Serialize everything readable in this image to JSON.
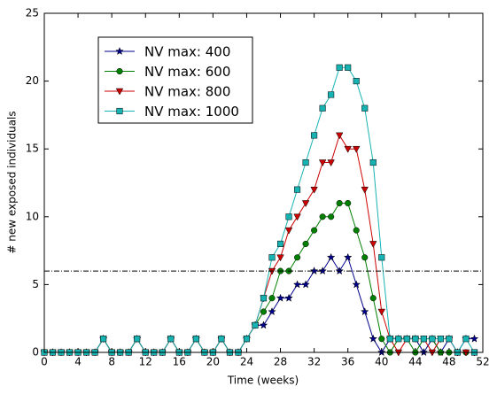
{
  "chart_data": {
    "type": "line",
    "xlabel": "Time (weeks)",
    "ylabel": "# new exposed individuals",
    "x": [
      0,
      1,
      2,
      3,
      4,
      5,
      6,
      7,
      8,
      9,
      10,
      11,
      12,
      13,
      14,
      15,
      16,
      17,
      18,
      19,
      20,
      21,
      22,
      23,
      24,
      25,
      26,
      27,
      28,
      29,
      30,
      31,
      32,
      33,
      34,
      35,
      36,
      37,
      38,
      39,
      40,
      41,
      42,
      43,
      44,
      45,
      46,
      47,
      48,
      49,
      50,
      51
    ],
    "series": [
      {
        "name": "NV max: 400",
        "color": "#00008b",
        "marker": "star",
        "values": [
          0,
          0,
          0,
          0,
          0,
          0,
          0,
          1,
          0,
          0,
          0,
          1,
          0,
          0,
          0,
          1,
          0,
          0,
          1,
          0,
          0,
          1,
          0,
          0,
          1,
          2,
          2,
          3,
          4,
          4,
          5,
          5,
          6,
          6,
          7,
          6,
          7,
          5,
          3,
          1,
          0,
          1,
          1,
          1,
          1,
          0,
          1,
          0,
          1,
          0,
          1,
          1
        ]
      },
      {
        "name": "NV max: 600",
        "color": "#007f00",
        "marker": "circle",
        "values": [
          0,
          0,
          0,
          0,
          0,
          0,
          0,
          1,
          0,
          0,
          0,
          1,
          0,
          0,
          0,
          1,
          0,
          0,
          1,
          0,
          0,
          1,
          0,
          0,
          1,
          2,
          3,
          4,
          6,
          6,
          7,
          8,
          9,
          10,
          10,
          11,
          11,
          9,
          7,
          4,
          1,
          0,
          1,
          1,
          0,
          1,
          1,
          0,
          0,
          0,
          0,
          0
        ]
      },
      {
        "name": "NV max: 800",
        "color": "#cc0000",
        "marker": "triangle-down",
        "values": [
          0,
          0,
          0,
          0,
          0,
          0,
          0,
          1,
          0,
          0,
          0,
          1,
          0,
          0,
          0,
          1,
          0,
          0,
          1,
          0,
          0,
          1,
          0,
          0,
          1,
          2,
          4,
          6,
          7,
          9,
          10,
          11,
          12,
          14,
          14,
          16,
          15,
          15,
          12,
          8,
          3,
          1,
          0,
          1,
          1,
          1,
          0,
          1,
          1,
          0,
          0,
          0
        ]
      },
      {
        "name": "NV max: 1000",
        "color": "#17b2b2",
        "marker": "square",
        "values": [
          0,
          0,
          0,
          0,
          0,
          0,
          0,
          1,
          0,
          0,
          0,
          1,
          0,
          0,
          0,
          1,
          0,
          0,
          1,
          0,
          0,
          1,
          0,
          0,
          1,
          2,
          4,
          7,
          8,
          10,
          12,
          14,
          16,
          18,
          19,
          21,
          21,
          20,
          18,
          14,
          7,
          1,
          1,
          1,
          1,
          1,
          1,
          1,
          1,
          0,
          1,
          0
        ]
      }
    ],
    "hline": 6,
    "xlim": [
      0,
      52
    ],
    "xticks": [
      0,
      4,
      8,
      12,
      16,
      20,
      24,
      28,
      32,
      36,
      40,
      44,
      48,
      52
    ],
    "ylim": [
      0,
      25
    ],
    "yticks": [
      0,
      5,
      10,
      15,
      20,
      25
    ],
    "grid": false,
    "legend": "upper left"
  }
}
